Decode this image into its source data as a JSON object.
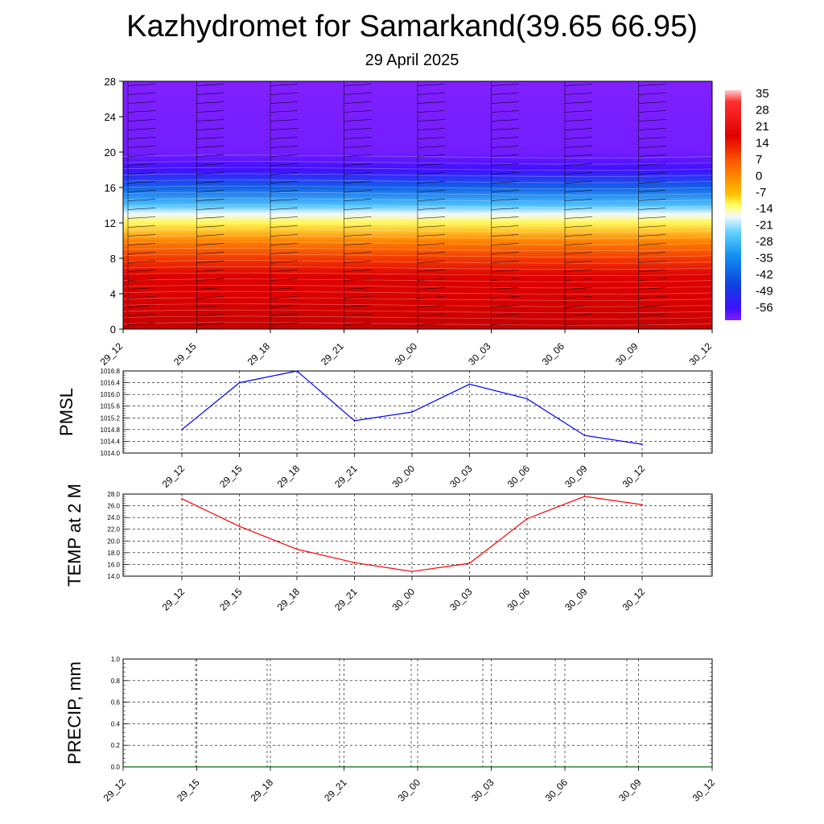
{
  "header": {
    "title": "Kazhydromet for Samarkand(39.65 66.95)",
    "date": "29 April 2025"
  },
  "time_labels": [
    "29_12",
    "29_15",
    "29_18",
    "29_21",
    "30_00",
    "30_03",
    "30_06",
    "30_09",
    "30_12"
  ],
  "chart_data": [
    {
      "type": "heatmap",
      "title": "",
      "xlabel": "",
      "ylabel": "",
      "x": [
        "29_12",
        "29_15",
        "29_18",
        "29_21",
        "30_00",
        "30_03",
        "30_06",
        "30_09",
        "30_12"
      ],
      "ylim": [
        0,
        28
      ],
      "yticks": [
        0,
        4,
        8,
        12,
        16,
        20,
        24,
        28
      ],
      "colorbar": {
        "labels": [
          "35",
          "28",
          "21",
          "14",
          "7",
          "0",
          "-7",
          "-14",
          "-21",
          "-28",
          "-35",
          "-42",
          "-49",
          "-56"
        ],
        "range": [
          -60,
          38
        ]
      },
      "temperature_profile": [
        {
          "height": 0,
          "value": 31
        },
        {
          "height": 2,
          "value": 26
        },
        {
          "height": 4,
          "value": 22
        },
        {
          "height": 6,
          "value": 21
        },
        {
          "height": 8,
          "value": 14
        },
        {
          "height": 10,
          "value": 6
        },
        {
          "height": 12,
          "value": -7
        },
        {
          "height": 13,
          "value": -14
        },
        {
          "height": 14,
          "value": -22
        },
        {
          "height": 16,
          "value": -35
        },
        {
          "height": 18,
          "value": -50
        },
        {
          "height": 20,
          "value": -58
        },
        {
          "height": 28,
          "value": -60
        }
      ],
      "wind_barbs": true
    },
    {
      "type": "line",
      "ylabel": "PMSL",
      "categories": [
        "29_12",
        "29_15",
        "29_18",
        "29_21",
        "30_00",
        "30_03",
        "30_06",
        "30_09",
        "30_12"
      ],
      "series": [
        {
          "values": [
            1014.8,
            1016.4,
            1016.8,
            1015.1,
            1015.4,
            1016.35,
            1015.85,
            1014.6,
            1014.3
          ],
          "color": "#0000ff"
        }
      ],
      "ylim": [
        1014.0,
        1016.8
      ],
      "yticks": [
        "1014.0",
        "1014.4",
        "1014.8",
        "1015.2",
        "1015.6",
        "1016.0",
        "1016.4",
        "1016.8"
      ],
      "grid": true
    },
    {
      "type": "line",
      "ylabel": "TEMP at 2 M",
      "categories": [
        "29_12",
        "29_15",
        "29_18",
        "29_21",
        "30_00",
        "30_03",
        "30_06",
        "30_09",
        "30_12"
      ],
      "series": [
        {
          "values": [
            27.2,
            22.5,
            18.6,
            16.3,
            14.8,
            16.2,
            23.8,
            27.6,
            26.2
          ],
          "color": "#ff0000"
        }
      ],
      "ylim": [
        14.0,
        28.0
      ],
      "yticks": [
        "14.0",
        "16.0",
        "18.0",
        "20.0",
        "22.0",
        "24.0",
        "26.0",
        "28.0"
      ],
      "grid": true
    },
    {
      "type": "line",
      "ylabel": "PRECIP, mm",
      "categories": [
        "29_12",
        "29_15",
        "29_18",
        "29_21",
        "30_00",
        "30_03",
        "30_06",
        "30_09",
        "30_12"
      ],
      "series": [
        {
          "values": [
            0,
            0,
            0,
            0,
            0,
            0,
            0,
            0,
            0
          ],
          "color": "#006400"
        }
      ],
      "ylim": [
        0.0,
        1.0
      ],
      "yticks": [
        "0.0",
        "0.2",
        "0.4",
        "0.6",
        "0.8",
        "1.0"
      ],
      "grid": true
    }
  ]
}
